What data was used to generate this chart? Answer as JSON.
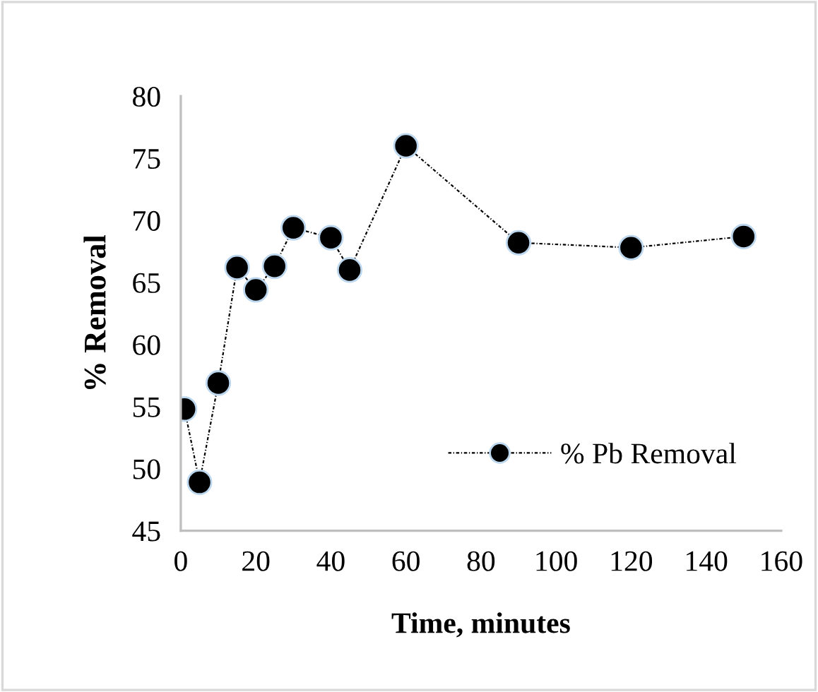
{
  "chart_data": {
    "type": "line",
    "xlabel": "Time, minutes",
    "ylabel": "% Removal",
    "x": [
      1,
      5,
      10,
      15,
      20,
      25,
      30,
      40,
      45,
      60,
      90,
      120,
      150
    ],
    "series": [
      {
        "name": "% Pb Removal",
        "color": "#000000",
        "values": [
          54.8,
          48.9,
          56.9,
          66.2,
          64.4,
          66.3,
          69.4,
          68.6,
          66.0,
          76.0,
          68.2,
          67.8,
          68.7
        ]
      }
    ],
    "xlim": [
      0,
      160
    ],
    "xticks": [
      0,
      20,
      40,
      60,
      80,
      100,
      120,
      140,
      160
    ],
    "ylim": [
      45,
      80
    ],
    "yticks": [
      45,
      50,
      55,
      60,
      65,
      70,
      75,
      80
    ],
    "grid": false,
    "legend": "lower right",
    "marker": "circle",
    "line_style": "dotted"
  }
}
